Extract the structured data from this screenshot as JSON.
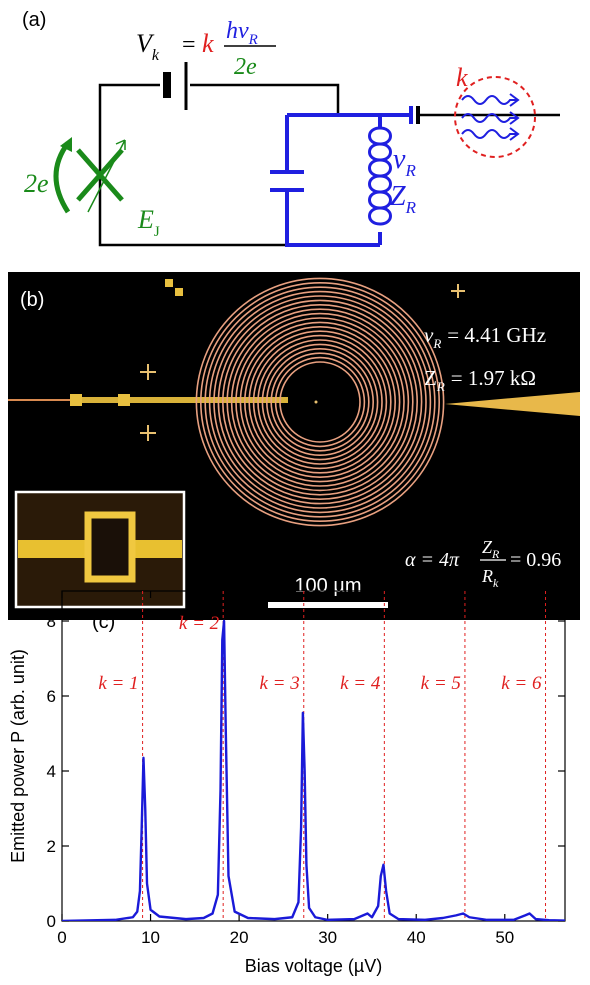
{
  "circuit": {
    "label": "(a)",
    "voltage_symbol": "V",
    "voltage_sub": "k",
    "equals": "=",
    "voltage_k": "k",
    "numerator": "hν",
    "numerator_sub": "R",
    "denominator": "2e",
    "photon_k": "k",
    "frequency_symbol": "ν",
    "frequency_sub": "R",
    "impedance_symbol": "Z",
    "impedance_sub": "R",
    "charge": "2e",
    "josephson_symbol": "E",
    "josephson_sub": "J"
  },
  "micrograph": {
    "label": "(b)",
    "frequency_symbol": "ν",
    "frequency_sub": "R",
    "frequency_value": "= 4.41 GHz",
    "impedance_symbol": "Z",
    "impedance_sub": "R",
    "impedance_value": "= 1.97 kΩ",
    "alpha_lhs": "α = 4π",
    "alpha_num": "Z",
    "alpha_num_sub": "R",
    "alpha_den": "R",
    "alpha_den_sub": "k",
    "alpha_value": "= 0.96",
    "scale_bar": "100 µm"
  },
  "chart_data": {
    "type": "line",
    "label": "(c)",
    "xlabel": "Bias voltage (µV)",
    "ylabel": "Emitted power P (arb. unit)",
    "xlim": [
      0,
      56.8
    ],
    "ylim": [
      0,
      8.8
    ],
    "xticks": [
      0,
      10,
      20,
      30,
      40,
      50
    ],
    "yticks": [
      0,
      2,
      4,
      6,
      8
    ],
    "series": [
      {
        "color": "#1a1ad8",
        "x": [
          0,
          2,
          4,
          6,
          8,
          8.5,
          8.8,
          9.0,
          9.2,
          9.4,
          9.6,
          10,
          11,
          14,
          16,
          17,
          17.6,
          17.9,
          18.1,
          18.3,
          18.5,
          18.8,
          19.5,
          21,
          24,
          26,
          26.7,
          27.0,
          27.2,
          27.4,
          27.6,
          27.9,
          28.6,
          30,
          33,
          34.5,
          35,
          35.7,
          36.0,
          36.3,
          36.6,
          37,
          38,
          41,
          43,
          44.5,
          45.3,
          46,
          48,
          51,
          52.3,
          52.8,
          53.5,
          55,
          57
        ],
        "values": [
          0,
          0.01,
          0.02,
          0.03,
          0.1,
          0.25,
          0.8,
          2.5,
          4.35,
          3.0,
          1.0,
          0.3,
          0.12,
          0.05,
          0.08,
          0.2,
          0.7,
          3.5,
          7.5,
          8.0,
          5.0,
          1.2,
          0.25,
          0.08,
          0.05,
          0.1,
          0.5,
          2.5,
          5.55,
          4.0,
          1.5,
          0.35,
          0.1,
          0.03,
          0.05,
          0.2,
          0.1,
          0.4,
          1.2,
          1.5,
          0.8,
          0.2,
          0.05,
          0.03,
          0.08,
          0.15,
          0.2,
          0.1,
          0.03,
          0.03,
          0.15,
          0.2,
          0.05,
          0.02,
          0.01
        ]
      }
    ],
    "ref_lines": {
      "color": "#e02020",
      "x": [
        9.1,
        18.2,
        27.3,
        36.4,
        45.5,
        54.6
      ],
      "labels": [
        "k = 1",
        "k = 2",
        "k = 3",
        "k = 4",
        "k = 5",
        "k = 6"
      ]
    }
  }
}
